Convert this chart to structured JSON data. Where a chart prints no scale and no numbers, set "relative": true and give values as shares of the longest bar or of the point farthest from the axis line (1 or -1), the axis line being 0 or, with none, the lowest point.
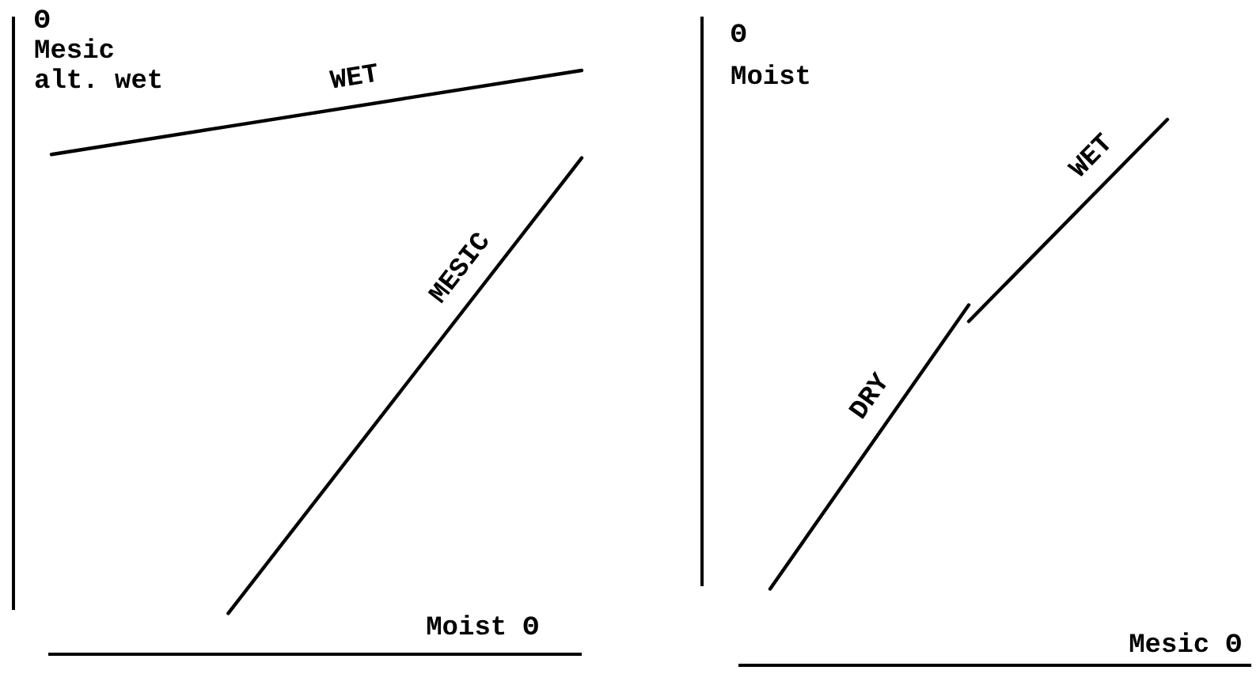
{
  "chart_data": [
    {
      "type": "line",
      "relative": true,
      "ylabel": "Θ\nMesic\nalt. wet",
      "xlabel": "Moist Θ",
      "categories": [
        null,
        null,
        null,
        null
      ],
      "series": [
        {
          "name": "WET",
          "color": "#000000",
          "values": [
            0.856,
            0.904,
            0.952,
            1
          ]
        },
        {
          "name": "MESIC",
          "color": "#000000",
          "values": [
            null,
            0.07,
            0.46,
            0.85
          ]
        }
      ]
    },
    {
      "type": "line",
      "relative": true,
      "ylabel": "Θ\nMoist",
      "xlabel": "Mesic Θ",
      "categories": [
        null,
        null,
        null
      ],
      "series": [
        {
          "name": "DRY",
          "color": "#000000",
          "values": [
            0.14,
            0.66,
            null
          ]
        },
        {
          "name": "WET",
          "color": "#000000",
          "values": [
            null,
            0.63,
            1
          ]
        }
      ]
    }
  ]
}
